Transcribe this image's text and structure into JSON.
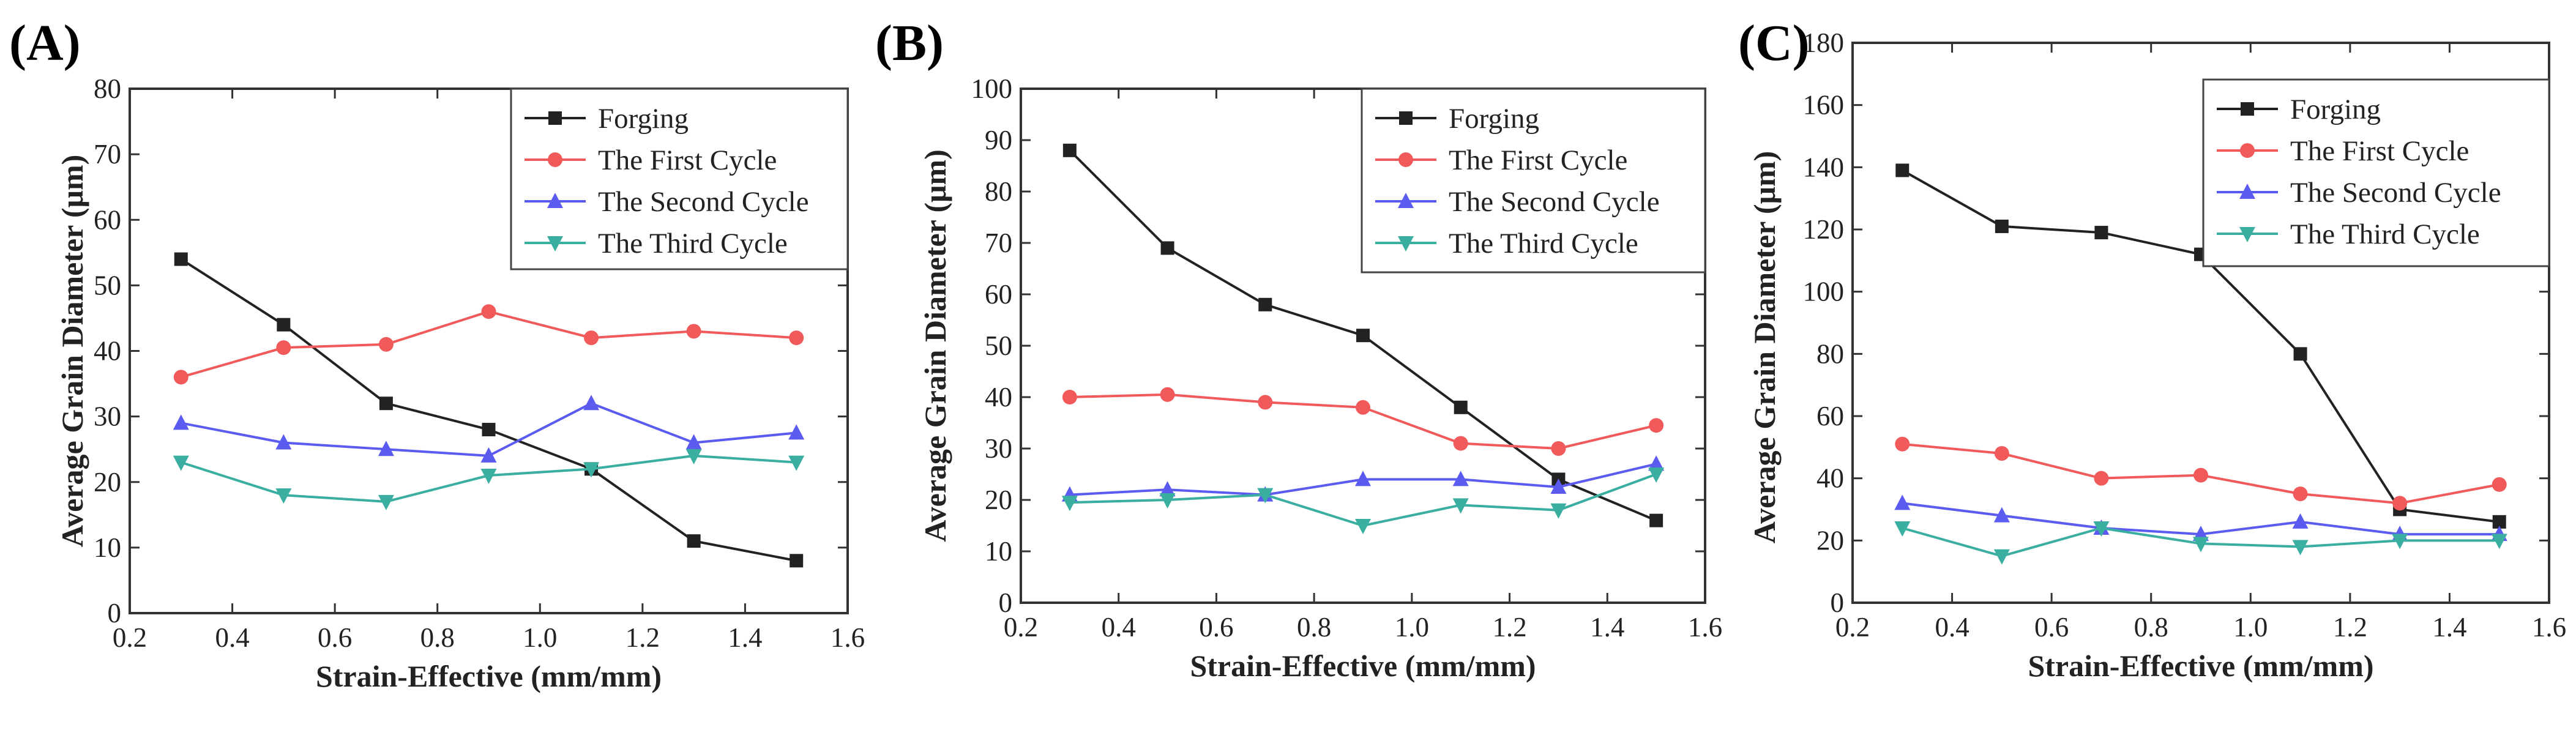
{
  "figure": {
    "colors": {
      "Forging": "#222222",
      "The First Cycle": "#f05a5a",
      "The Second Cycle": "#5b5bf0",
      "The Third Cycle": "#3aaea0"
    },
    "markers": {
      "Forging": "square",
      "The First Cycle": "circle",
      "The Second Cycle": "triangle-up",
      "The Third Cycle": "triangle-down"
    }
  },
  "chart_data": [
    {
      "panel": "(A)",
      "type": "line",
      "xlabel": "Strain-Effective (mm/mm)",
      "ylabel": "Average Grain Diameter (μm)",
      "xlim": [
        0.2,
        1.6
      ],
      "ylim": [
        0,
        80
      ],
      "xticks": [
        "0.2",
        "0.4",
        "0.6",
        "0.8",
        "1.0",
        "1.2",
        "1.4",
        "1.6"
      ],
      "yticks": [
        "0",
        "10",
        "20",
        "30",
        "40",
        "50",
        "60",
        "70",
        "80"
      ],
      "legend_position": "top-right",
      "x": [
        0.3,
        0.5,
        0.7,
        0.9,
        1.1,
        1.3,
        1.5
      ],
      "series": [
        {
          "name": "Forging",
          "values": [
            54,
            44,
            32,
            28,
            22,
            11,
            8
          ]
        },
        {
          "name": "The First Cycle",
          "values": [
            36,
            40.5,
            41,
            46,
            42,
            43,
            42
          ]
        },
        {
          "name": "The Second Cycle",
          "values": [
            29,
            26,
            25,
            24,
            32,
            26,
            27.5
          ]
        },
        {
          "name": "The Third Cycle",
          "values": [
            23,
            18,
            17,
            21,
            22,
            24,
            23
          ]
        }
      ]
    },
    {
      "panel": "(B)",
      "type": "line",
      "xlabel": "Strain-Effective (mm/mm)",
      "ylabel": "Average Grain Diameter (μm)",
      "xlim": [
        0.2,
        1.6
      ],
      "ylim": [
        0,
        100
      ],
      "xticks": [
        "0.2",
        "0.4",
        "0.6",
        "0.8",
        "1.0",
        "1.2",
        "1.4",
        "1.6"
      ],
      "yticks": [
        "0",
        "10",
        "20",
        "30",
        "40",
        "50",
        "60",
        "70",
        "80",
        "90",
        "100"
      ],
      "legend_position": "top-right",
      "x": [
        0.3,
        0.5,
        0.7,
        0.9,
        1.1,
        1.3,
        1.5
      ],
      "series": [
        {
          "name": "Forging",
          "values": [
            88,
            69,
            58,
            52,
            38,
            24,
            16
          ]
        },
        {
          "name": "The First Cycle",
          "values": [
            40,
            40.5,
            39,
            38,
            31,
            30,
            34.5
          ]
        },
        {
          "name": "The Second Cycle",
          "values": [
            21,
            22,
            21,
            24,
            24,
            22.5,
            27
          ]
        },
        {
          "name": "The Third Cycle",
          "values": [
            19.5,
            20,
            21,
            15,
            19,
            18,
            25
          ]
        }
      ]
    },
    {
      "panel": "(C)",
      "type": "line",
      "xlabel": "Strain-Effective (mm/mm)",
      "ylabel": "Average Grain Diameter (μm)",
      "xlim": [
        0.2,
        1.6
      ],
      "ylim": [
        0,
        180
      ],
      "xticks": [
        "0.2",
        "0.4",
        "0.6",
        "0.8",
        "1.0",
        "1.2",
        "1.4",
        "1.6"
      ],
      "yticks": [
        "0",
        "20",
        "40",
        "60",
        "80",
        "100",
        "120",
        "140",
        "160",
        "180"
      ],
      "legend_position": "top-right",
      "x": [
        0.3,
        0.5,
        0.7,
        0.9,
        1.1,
        1.3,
        1.5
      ],
      "series": [
        {
          "name": "Forging",
          "values": [
            139,
            121,
            119,
            112,
            80,
            30,
            26
          ]
        },
        {
          "name": "The First Cycle",
          "values": [
            51,
            48,
            40,
            41,
            35,
            32,
            38
          ]
        },
        {
          "name": "The Second Cycle",
          "values": [
            32,
            28,
            24,
            22,
            26,
            22,
            22
          ]
        },
        {
          "name": "The Third Cycle",
          "values": [
            24,
            15,
            24,
            19,
            18,
            20,
            20
          ]
        }
      ]
    }
  ]
}
